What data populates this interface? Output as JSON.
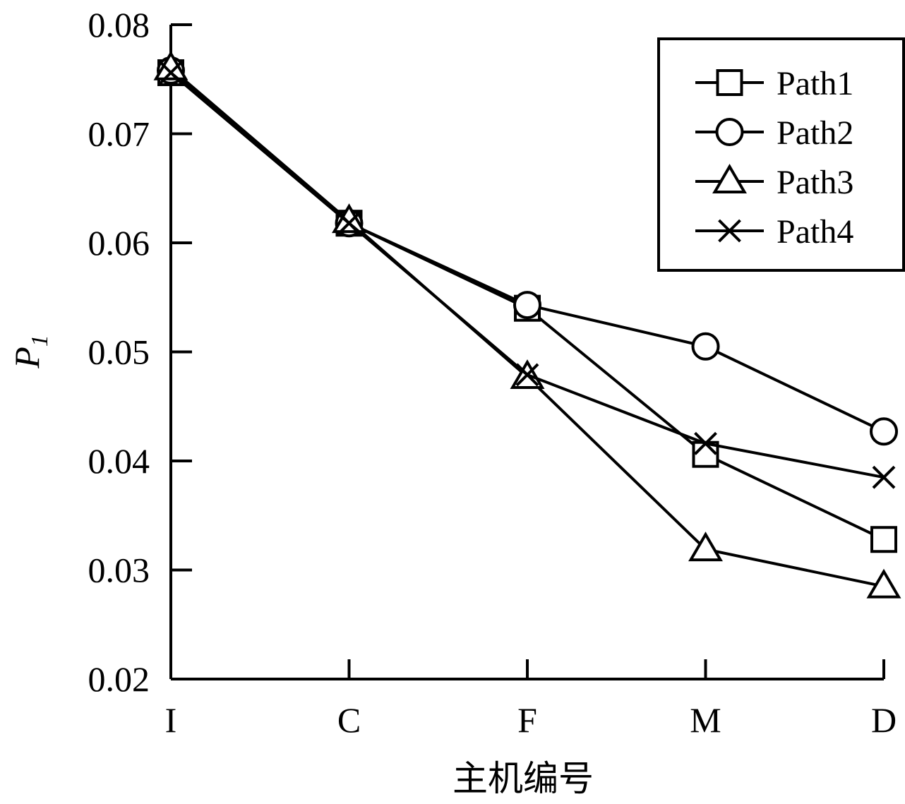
{
  "chart_data": {
    "type": "line",
    "title": "",
    "xlabel": "主机编号",
    "ylabel": {
      "main": "P",
      "sub": "1"
    },
    "categories": [
      "I",
      "C",
      "F",
      "M",
      "D"
    ],
    "ylim": [
      0.02,
      0.08
    ],
    "yticks": [
      "0.02",
      "0.03",
      "0.04",
      "0.05",
      "0.06",
      "0.07",
      "0.08"
    ],
    "yticks_values": [
      0.02,
      0.03,
      0.04,
      0.05,
      0.06,
      0.07,
      0.08
    ],
    "grid": false,
    "legend_position": "top-right",
    "color": "#000000",
    "series": [
      {
        "name": "Path1",
        "marker": "square",
        "values": [
          0.0756,
          0.0618,
          0.054,
          0.0406,
          0.0328
        ]
      },
      {
        "name": "Path2",
        "marker": "circle",
        "values": [
          0.0758,
          0.0618,
          0.0543,
          0.0505,
          0.0427
        ]
      },
      {
        "name": "Path3",
        "marker": "triangle",
        "values": [
          0.076,
          0.062,
          0.0477,
          0.0319,
          0.0285
        ]
      },
      {
        "name": "Path4",
        "marker": "cross",
        "values": [
          0.0756,
          0.0618,
          0.0479,
          0.0416,
          0.0385
        ]
      }
    ]
  }
}
